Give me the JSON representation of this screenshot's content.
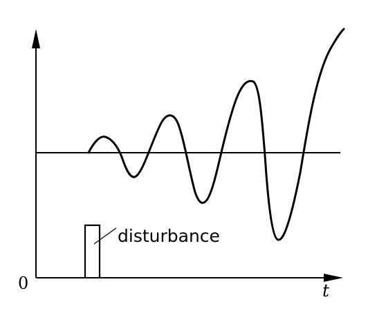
{
  "labels": {
    "disturbance": "disturbance",
    "origin": "0",
    "time_axis": "t"
  },
  "colors": {
    "stroke": "#000000",
    "background": "#ffffff"
  }
}
